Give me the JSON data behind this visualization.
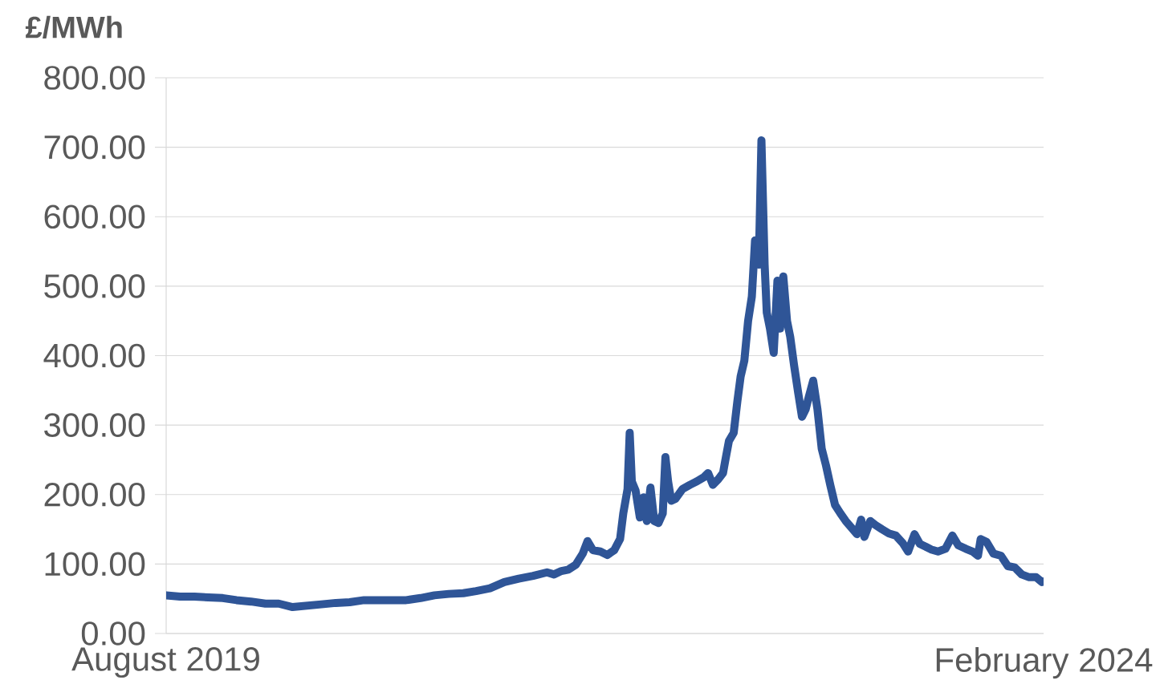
{
  "chart_data": {
    "type": "line",
    "ylabel": "£/MWh",
    "grid": "y",
    "xlim": [
      "2019-08-01",
      "2024-02-01"
    ],
    "xticks": [
      {
        "value": "2019-08-01",
        "label": "August 2019"
      },
      {
        "value": "2024-02-01",
        "label": "February  2024"
      }
    ],
    "ylim": [
      0,
      800
    ],
    "yticks": [
      {
        "value": 0,
        "label": "0.00"
      },
      {
        "value": 100,
        "label": "100.00"
      },
      {
        "value": 200,
        "label": "200.00"
      },
      {
        "value": 300,
        "label": "300.00"
      },
      {
        "value": 400,
        "label": "400.00"
      },
      {
        "value": 500,
        "label": "500.00"
      },
      {
        "value": 600,
        "label": "600.00"
      },
      {
        "value": 700,
        "label": "700.00"
      },
      {
        "value": 800,
        "label": "800.00"
      }
    ],
    "x": [
      "2019-08-01",
      "2019-08-27",
      "2019-09-23",
      "2019-10-19",
      "2019-11-15",
      "2019-12-11",
      "2020-01-07",
      "2020-02-03",
      "2020-02-28",
      "2020-03-25",
      "2020-04-21",
      "2020-05-18",
      "2020-06-14",
      "2020-07-10",
      "2020-08-06",
      "2020-09-02",
      "2020-09-28",
      "2020-10-24",
      "2020-11-20",
      "2020-12-16",
      "2021-01-12",
      "2021-02-08",
      "2021-03-04",
      "2021-03-30",
      "2021-04-26",
      "2021-05-23",
      "2021-06-19",
      "2021-07-15",
      "2021-07-28",
      "2021-08-11",
      "2021-08-24",
      "2021-09-07",
      "2021-09-20",
      "2021-09-29",
      "2021-10-09",
      "2021-10-23",
      "2021-11-05",
      "2021-11-18",
      "2021-11-29",
      "2021-12-05",
      "2021-12-13",
      "2021-12-17",
      "2021-12-21",
      "2021-12-28",
      "2022-01-05",
      "2022-01-12",
      "2022-01-18",
      "2022-01-25",
      "2022-02-01",
      "2022-02-09",
      "2022-02-17",
      "2022-02-22",
      "2022-02-27",
      "2022-03-05",
      "2022-03-13",
      "2022-03-26",
      "2022-04-09",
      "2022-04-22",
      "2022-05-05",
      "2022-05-13",
      "2022-05-22",
      "2022-06-01",
      "2022-06-10",
      "2022-06-14",
      "2022-06-21",
      "2022-06-30",
      "2022-07-07",
      "2022-07-13",
      "2022-07-20",
      "2022-07-27",
      "2022-08-03",
      "2022-08-09",
      "2022-08-16",
      "2022-08-21",
      "2022-08-27",
      "2022-08-31",
      "2022-09-06",
      "2022-09-13",
      "2022-09-20",
      "2022-09-25",
      "2022-10-01",
      "2022-10-08",
      "2022-10-14",
      "2022-10-21",
      "2022-10-29",
      "2022-11-05",
      "2022-11-12",
      "2022-11-18",
      "2022-11-26",
      "2022-12-04",
      "2022-12-12",
      "2022-12-20",
      "2022-12-28",
      "2023-01-06",
      "2023-01-16",
      "2023-01-26",
      "2023-02-06",
      "2023-02-16",
      "2023-02-24",
      "2023-03-02",
      "2023-03-13",
      "2023-03-23",
      "2023-04-04",
      "2023-04-17",
      "2023-04-30",
      "2023-05-13",
      "2023-05-23",
      "2023-06-04",
      "2023-06-14",
      "2023-06-25",
      "2023-07-05",
      "2023-07-18",
      "2023-08-01",
      "2023-08-14",
      "2023-08-25",
      "2023-09-08",
      "2023-09-21",
      "2023-10-01",
      "2023-10-06",
      "2023-10-17",
      "2023-10-30",
      "2023-11-13",
      "2023-11-26",
      "2023-12-09",
      "2023-12-22",
      "2024-01-05",
      "2024-01-18",
      "2024-01-29",
      "2024-02-01"
    ],
    "series": [
      {
        "color": "#2f5597",
        "values": [
          55,
          53,
          53,
          52,
          51,
          48,
          46,
          43,
          43,
          38,
          40,
          42,
          44,
          45,
          48,
          48,
          48,
          48,
          51,
          55,
          57,
          58,
          61,
          65,
          74,
          79,
          83,
          88,
          85,
          90,
          92,
          99,
          115,
          133,
          120,
          118,
          113,
          120,
          136,
          173,
          208,
          289,
          219,
          206,
          167,
          196,
          162,
          210,
          162,
          159,
          173,
          254,
          219,
          191,
          194,
          208,
          214,
          219,
          225,
          231,
          214,
          222,
          231,
          248,
          277,
          289,
          335,
          370,
          393,
          450,
          485,
          566,
          531,
          710,
          531,
          462,
          439,
          404,
          508,
          439,
          514,
          450,
          427,
          387,
          346,
          312,
          323,
          341,
          364,
          323,
          266,
          242,
          214,
          185,
          173,
          162,
          152,
          143,
          164,
          139,
          162,
          156,
          150,
          144,
          141,
          130,
          118,
          143,
          129,
          125,
          121,
          118,
          122,
          141,
          127,
          122,
          118,
          112,
          136,
          132,
          115,
          112,
          97,
          95,
          85,
          81,
          81,
          74,
          75
        ]
      }
    ]
  }
}
